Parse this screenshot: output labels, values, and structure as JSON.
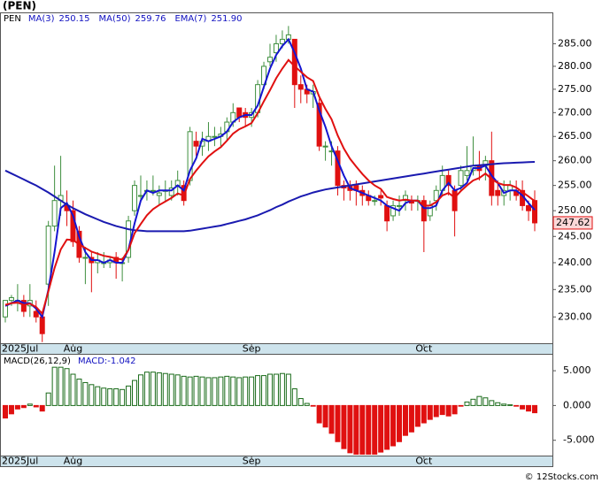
{
  "title": "(PEN)",
  "footer": "© 12Stocks.com",
  "chart_data": [
    {
      "type": "candlestick",
      "symbol": "PEN",
      "categories": [
        "2025Jul",
        null,
        null,
        null,
        null,
        null,
        null,
        null,
        null,
        null,
        null,
        "Aug",
        null,
        null,
        null,
        null,
        null,
        null,
        null,
        null,
        null,
        null,
        null,
        null,
        null,
        null,
        null,
        null,
        null,
        null,
        null,
        null,
        null,
        null,
        null,
        null,
        null,
        null,
        null,
        null,
        "Sep",
        null,
        null,
        null,
        null,
        null,
        null,
        null,
        null,
        null,
        null,
        null,
        null,
        null,
        null,
        null,
        null,
        null,
        null,
        null,
        null,
        null,
        null,
        null,
        null,
        null,
        null,
        null,
        "Oct",
        null,
        null,
        null,
        null,
        null,
        null,
        null,
        null,
        null,
        null,
        null,
        null,
        null,
        null,
        null,
        null,
        null,
        null
      ],
      "open": [
        230,
        233,
        233,
        233,
        232,
        231,
        230,
        236,
        247,
        252,
        251,
        250,
        246,
        241,
        241,
        240,
        240,
        240,
        241,
        240,
        241,
        250,
        253,
        254,
        254,
        253,
        254,
        253,
        255,
        255,
        256,
        264,
        263,
        264,
        265,
        265,
        266,
        268,
        271,
        270,
        269,
        270,
        276,
        281,
        283,
        285,
        286,
        286,
        276,
        275,
        274,
        272,
        263,
        262,
        262,
        255,
        255,
        255,
        254,
        253,
        252,
        253,
        251,
        249,
        251,
        252,
        252,
        252,
        252,
        249,
        252,
        254,
        257,
        254,
        255,
        257,
        258,
        259,
        259,
        260,
        254,
        253,
        254,
        254,
        254,
        251,
        252
      ],
      "high": [
        233,
        234,
        236,
        234,
        236,
        233,
        231,
        248,
        259,
        261,
        254,
        252,
        247,
        243,
        242,
        242,
        242,
        241,
        242,
        241,
        249,
        256,
        257,
        256,
        257,
        255,
        256,
        256,
        258,
        256,
        267,
        266,
        266,
        268,
        267,
        267,
        269,
        272,
        271,
        271,
        271,
        277,
        281,
        285,
        287,
        288,
        289,
        286,
        278,
        276,
        276,
        273,
        264,
        264,
        263,
        256,
        256,
        256,
        255,
        254,
        253,
        254,
        252,
        252,
        253,
        254,
        253,
        253,
        253,
        252,
        255,
        259,
        258,
        255,
        259,
        263,
        265,
        262,
        261,
        266,
        256,
        256,
        256,
        256,
        256,
        252,
        254
      ],
      "low": [
        229,
        232,
        231,
        230,
        230,
        229,
        225.5,
        232,
        246,
        249,
        247,
        243,
        240,
        236,
        234.5,
        238,
        239,
        239,
        237,
        236.5,
        240,
        249,
        252,
        252,
        253,
        251,
        252,
        252,
        253,
        251,
        255,
        261,
        261,
        262,
        263,
        263,
        264,
        267,
        268,
        267,
        267,
        269,
        275,
        280,
        281,
        284,
        285,
        271,
        272,
        272,
        271,
        262,
        260,
        259,
        253,
        252,
        252,
        251,
        251,
        251,
        251,
        251,
        246,
        248,
        249,
        250,
        250,
        250,
        242,
        248,
        250,
        253,
        253,
        245,
        254,
        256,
        257,
        256,
        256,
        251,
        251,
        251,
        252,
        252,
        250,
        248,
        246
      ],
      "close": [
        233,
        233.5,
        233,
        231,
        233,
        230,
        227,
        247,
        252,
        253,
        250,
        244,
        241,
        241,
        240,
        240.5,
        240,
        240.5,
        240,
        240,
        248,
        255,
        253,
        254,
        254,
        253.5,
        254,
        254.5,
        256,
        252,
        266,
        263,
        264,
        265,
        265,
        265.5,
        268,
        270,
        269,
        269,
        270,
        276,
        280,
        282,
        285,
        286,
        287,
        276,
        275,
        274,
        274.5,
        263,
        263,
        262,
        255,
        254.5,
        254,
        254,
        253,
        252,
        252,
        252.5,
        248,
        251,
        251,
        253,
        251.5,
        252,
        248,
        251,
        254,
        257,
        255,
        250,
        258,
        258,
        259,
        258,
        260,
        253,
        253,
        254,
        255,
        253,
        251,
        250,
        247.62
      ],
      "last_label": "247.62",
      "up_color": "#3f8f3f",
      "down_color": "#e01010",
      "series": [
        {
          "name": "MA(3)",
          "legend_value": "250.15",
          "color": "#1515d0",
          "values": [
            232,
            232.5,
            233,
            232.5,
            232.5,
            231.5,
            230,
            235,
            242,
            250.5,
            251.5,
            249,
            245,
            242,
            240.5,
            240.5,
            240,
            240.5,
            240,
            240,
            242.5,
            247.5,
            252,
            254,
            253.5,
            254,
            254,
            254,
            255,
            254,
            258,
            260.5,
            264.5,
            264,
            264.5,
            265,
            266,
            268,
            269,
            269.5,
            269.5,
            271.5,
            275.5,
            279.5,
            282.5,
            284.5,
            286,
            283,
            279.5,
            275,
            274.5,
            270.5,
            267,
            263,
            260,
            257,
            254.5,
            254,
            253.5,
            253,
            252.5,
            252,
            251,
            250.5,
            250,
            251.5,
            252,
            252,
            250.5,
            250.5,
            251,
            254,
            255.5,
            254,
            254.5,
            255.5,
            258.5,
            258.5,
            259,
            257,
            255.5,
            253.5,
            254,
            254,
            253,
            251.5,
            250.15
          ]
        },
        {
          "name": "MA(50)",
          "legend_value": "259.76",
          "color": "#1a1ab0",
          "values": [
            258,
            257.4,
            256.8,
            256.2,
            255.6,
            255,
            254.3,
            253.6,
            252.8,
            252,
            251.2,
            250.5,
            249.9,
            249.3,
            248.8,
            248.3,
            247.8,
            247.4,
            247,
            246.7,
            246.4,
            246.2,
            246.1,
            246,
            246,
            246,
            246,
            246,
            246,
            246,
            246.1,
            246.3,
            246.5,
            246.7,
            246.9,
            247.1,
            247.4,
            247.7,
            248,
            248.3,
            248.7,
            249.1,
            249.6,
            250.1,
            250.7,
            251.2,
            251.8,
            252.3,
            252.8,
            253.2,
            253.6,
            253.9,
            254.2,
            254.4,
            254.6,
            254.8,
            255,
            255.2,
            255.4,
            255.6,
            255.8,
            256,
            256.2,
            256.4,
            256.6,
            256.8,
            257,
            257.2,
            257.4,
            257.6,
            257.8,
            258,
            258.2,
            258.4,
            258.6,
            258.8,
            259,
            259.1,
            259.2,
            259.3,
            259.4,
            259.5,
            259.55,
            259.6,
            259.65,
            259.7,
            259.76
          ]
        },
        {
          "name": "EMA(7)",
          "legend_value": "251.90",
          "color": "#e01010",
          "values": [
            232.2,
            232.5,
            232.6,
            232.2,
            232.4,
            231.8,
            230.6,
            234.7,
            239,
            242.5,
            244.4,
            244.3,
            243.5,
            242.8,
            242.1,
            241.7,
            241.3,
            241.1,
            240.8,
            240.6,
            242.4,
            245.6,
            247.4,
            249.1,
            250.3,
            251.1,
            251.8,
            252.5,
            253.4,
            253,
            256.3,
            258,
            259.5,
            260.9,
            261.9,
            262.8,
            264.1,
            265.6,
            266.5,
            267.1,
            267.8,
            269.9,
            272.4,
            274.8,
            277.4,
            279.5,
            281.4,
            280,
            278.8,
            277.6,
            276.8,
            273.4,
            270.8,
            268.6,
            265.2,
            262.5,
            260.4,
            258.8,
            257.3,
            256,
            255,
            254.3,
            252.7,
            252.3,
            252,
            252.2,
            252,
            252,
            251,
            251,
            251.7,
            253,
            253.5,
            252.6,
            253.9,
            255,
            256,
            256.5,
            257.4,
            256.3,
            255.5,
            255.1,
            255.1,
            254.6,
            253.7,
            252.8,
            251.9
          ]
        }
      ],
      "log_scale": true,
      "ylim": [
        225.3,
        291.9
      ],
      "yticks": [
        {
          "value": 230,
          "label": "230.00"
        },
        {
          "value": 235,
          "label": "235.00"
        },
        {
          "value": 240,
          "label": "240.00"
        },
        {
          "value": 245,
          "label": "245.00"
        },
        {
          "value": 250,
          "label": "250.00"
        },
        {
          "value": 255,
          "label": "255.00"
        },
        {
          "value": 260,
          "label": "260.00"
        },
        {
          "value": 265,
          "label": "265.00"
        },
        {
          "value": 270,
          "label": "270.00"
        },
        {
          "value": 275,
          "label": "275.00"
        },
        {
          "value": 280,
          "label": "280.00"
        },
        {
          "value": 285,
          "label": "285.00"
        }
      ]
    },
    {
      "type": "bar",
      "title": "MACD(26,12,9)",
      "subtitle": "MACD:-1.042",
      "categories": [
        "2025Jul",
        null,
        null,
        null,
        null,
        null,
        null,
        null,
        null,
        null,
        null,
        "Aug",
        null,
        null,
        null,
        null,
        null,
        null,
        null,
        null,
        null,
        null,
        null,
        null,
        null,
        null,
        null,
        null,
        null,
        null,
        null,
        null,
        null,
        null,
        null,
        null,
        null,
        null,
        null,
        null,
        "Sep",
        null,
        null,
        null,
        null,
        null,
        null,
        null,
        null,
        null,
        null,
        null,
        null,
        null,
        null,
        null,
        null,
        null,
        null,
        null,
        null,
        null,
        null,
        null,
        null,
        null,
        null,
        null,
        "Oct",
        null,
        null,
        null,
        null,
        null,
        null,
        null,
        null,
        null,
        null,
        null,
        null,
        null,
        null,
        null,
        null,
        null,
        null
      ],
      "values": [
        -1.8,
        -1.2,
        -0.5,
        -0.3,
        0.2,
        -0.2,
        -0.8,
        1.8,
        5.5,
        5.5,
        5.3,
        4.5,
        3.8,
        3.3,
        3,
        2.7,
        2.5,
        2.4,
        2.4,
        2.3,
        2.8,
        3.6,
        4.4,
        4.8,
        4.8,
        4.7,
        4.6,
        4.5,
        4.4,
        4.2,
        4.1,
        4.2,
        4.1,
        4,
        4,
        4.1,
        4.2,
        4.1,
        4,
        4.1,
        4.1,
        4.3,
        4.3,
        4.5,
        4.5,
        4.6,
        4.5,
        2.4,
        1,
        0.3,
        -0.1,
        -2.5,
        -3.1,
        -4,
        -5.2,
        -6.2,
        -6.8,
        -7,
        -7,
        -7,
        -7,
        -6.7,
        -6.3,
        -5.8,
        -5.2,
        -4.3,
        -3.8,
        -3,
        -2.5,
        -2,
        -1.6,
        -1.3,
        -1.5,
        -1.2,
        -0.1,
        0.5,
        0.9,
        1.3,
        1.1,
        0.7,
        0.4,
        0.2,
        0.1,
        -0.1,
        -0.5,
        -0.8,
        -1.042
      ],
      "up_color": "#1a6b1a",
      "down_color": "#e01010",
      "ylim": [
        -7.2,
        7.3
      ],
      "yticks": [
        {
          "value": -5,
          "label": "-5.000"
        },
        {
          "value": 0,
          "label": "0.000"
        },
        {
          "value": 5,
          "label": "5.000"
        }
      ]
    }
  ]
}
